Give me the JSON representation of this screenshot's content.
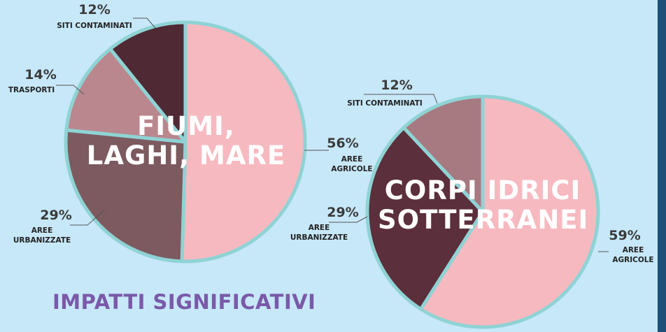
{
  "chart_data": [
    {
      "type": "pie",
      "title": "FIUMI, LAGHI, MARE",
      "categories": [
        "AREE AGRICOLE",
        "AREE URBANIZZATE",
        "TRASPORTI",
        "SITI CONTAMINATI"
      ],
      "values": [
        56,
        29,
        14,
        12
      ],
      "value_labels": [
        "56%",
        "29%",
        "14%",
        "12%"
      ],
      "colors": [
        "#f7b9c0",
        "#7c5a5f",
        "#b9878d",
        "#4f2934"
      ]
    },
    {
      "type": "pie",
      "title": "CORPI IDRICI SOTTERRANEI",
      "categories": [
        "AREE AGRICOLE",
        "AREE URBANIZZATE",
        "SITI CONTAMINATI"
      ],
      "values": [
        59,
        29,
        12
      ],
      "value_labels": [
        "59%",
        "29%",
        "12%"
      ],
      "colors": [
        "#f7b9c0",
        "#5b2f3b",
        "#a67a80"
      ]
    }
  ],
  "caption": "IMPATTI SIGNIFICATIVI"
}
